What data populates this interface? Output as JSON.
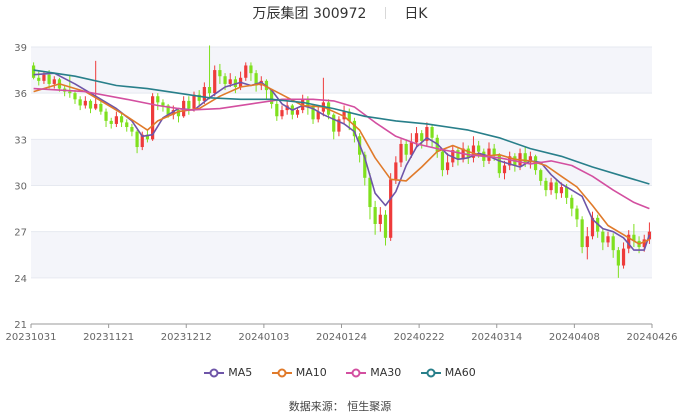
{
  "header": {
    "title": "万辰集团 300972",
    "period": "日K"
  },
  "source_text": "数据来源：  恒生聚源",
  "colors": {
    "up": "#ee3b3b",
    "down": "#7fe01e",
    "grid": "#e6e9f0",
    "band": "#f4f5fa",
    "axis": "#999999"
  },
  "chart_data": {
    "type": "candlestick",
    "ylim": [
      21,
      39
    ],
    "yticks": [
      21,
      24,
      27,
      30,
      33,
      36,
      39
    ],
    "xtick_labels": [
      "20231031",
      "20231121",
      "20231212",
      "20240103",
      "20240124",
      "20240222",
      "20240314",
      "20240408",
      "20240426"
    ],
    "session_count": 120,
    "candles": [
      [
        37.8,
        37.0,
        38.0,
        36.9
      ],
      [
        37.0,
        36.8,
        37.4,
        36.5
      ],
      [
        36.8,
        37.2,
        37.4,
        36.6
      ],
      [
        37.2,
        36.6,
        37.5,
        36.3
      ],
      [
        36.6,
        36.9,
        37.1,
        36.3
      ],
      [
        36.9,
        36.3,
        37.0,
        36.1
      ],
      [
        36.3,
        36.1,
        36.5,
        35.8
      ],
      [
        36.1,
        36.0,
        37.2,
        35.7
      ],
      [
        36.0,
        35.6,
        36.2,
        35.3
      ],
      [
        35.6,
        35.2,
        35.8,
        34.9
      ],
      [
        35.2,
        35.5,
        35.8,
        35.0
      ],
      [
        35.5,
        35.0,
        35.6,
        34.7
      ],
      [
        35.0,
        35.3,
        38.1,
        34.9
      ],
      [
        35.3,
        34.8,
        35.5,
        34.6
      ],
      [
        34.8,
        34.2,
        35.0,
        33.8
      ],
      [
        34.2,
        34.0,
        34.4,
        33.7
      ],
      [
        34.0,
        34.5,
        34.8,
        33.8
      ],
      [
        34.5,
        34.1,
        34.7,
        33.8
      ],
      [
        34.1,
        33.8,
        34.3,
        33.5
      ],
      [
        33.8,
        33.5,
        34.0,
        33.2
      ],
      [
        33.5,
        32.5,
        33.6,
        32.1
      ],
      [
        32.5,
        33.3,
        33.5,
        32.3
      ],
      [
        33.3,
        33.0,
        33.6,
        32.8
      ],
      [
        33.0,
        35.8,
        36.0,
        32.9
      ],
      [
        35.8,
        35.4,
        36.0,
        34.9
      ],
      [
        35.4,
        35.2,
        35.6,
        34.8
      ],
      [
        35.2,
        34.6,
        35.3,
        34.4
      ],
      [
        34.6,
        34.9,
        35.2,
        34.3
      ],
      [
        34.9,
        34.5,
        35.0,
        34.1
      ],
      [
        34.5,
        35.5,
        35.8,
        34.4
      ],
      [
        35.5,
        35.0,
        35.8,
        34.6
      ],
      [
        35.0,
        35.9,
        36.1,
        34.8
      ],
      [
        35.9,
        35.5,
        36.2,
        35.2
      ],
      [
        35.5,
        36.4,
        36.7,
        35.3
      ],
      [
        36.4,
        36.0,
        39.1,
        35.6
      ],
      [
        36.0,
        37.5,
        37.8,
        35.8
      ],
      [
        37.5,
        37.1,
        37.9,
        36.6
      ],
      [
        37.1,
        36.6,
        37.3,
        36.2
      ],
      [
        36.6,
        36.9,
        37.3,
        36.4
      ],
      [
        36.9,
        36.4,
        37.1,
        36.0
      ],
      [
        36.4,
        37.0,
        37.4,
        36.2
      ],
      [
        37.0,
        37.8,
        38.0,
        36.8
      ],
      [
        37.8,
        37.3,
        38.0,
        36.8
      ],
      [
        37.3,
        36.5,
        37.5,
        36.1
      ],
      [
        36.5,
        36.8,
        37.1,
        36.2
      ],
      [
        36.8,
        36.2,
        36.9,
        35.6
      ],
      [
        36.2,
        35.3,
        36.3,
        35.0
      ],
      [
        35.3,
        34.5,
        35.5,
        34.2
      ],
      [
        34.5,
        34.9,
        35.2,
        34.3
      ],
      [
        34.9,
        35.2,
        35.5,
        34.6
      ],
      [
        35.2,
        34.6,
        35.3,
        34.3
      ],
      [
        34.6,
        34.9,
        35.1,
        34.4
      ],
      [
        34.9,
        35.6,
        35.9,
        34.7
      ],
      [
        35.6,
        35.2,
        35.8,
        34.6
      ],
      [
        35.2,
        34.3,
        35.3,
        34.0
      ],
      [
        34.3,
        34.8,
        35.1,
        34.1
      ],
      [
        34.8,
        35.4,
        37.0,
        34.5
      ],
      [
        35.4,
        34.6,
        35.6,
        34.3
      ],
      [
        34.6,
        33.5,
        34.7,
        33.0
      ],
      [
        33.5,
        34.3,
        34.5,
        33.2
      ],
      [
        34.3,
        34.8,
        35.2,
        34.0
      ],
      [
        34.8,
        34.2,
        35.0,
        33.6
      ],
      [
        34.2,
        33.2,
        34.4,
        32.8
      ],
      [
        33.2,
        32.0,
        33.4,
        31.5
      ],
      [
        32.0,
        30.5,
        32.2,
        30.0
      ],
      [
        30.5,
        28.6,
        30.8,
        27.8
      ],
      [
        28.6,
        27.5,
        29.0,
        26.8
      ],
      [
        27.5,
        28.1,
        28.6,
        27.0
      ],
      [
        28.1,
        26.6,
        28.4,
        26.1
      ],
      [
        26.6,
        30.4,
        30.8,
        26.4
      ],
      [
        30.4,
        31.5,
        31.9,
        30.1
      ],
      [
        31.5,
        32.7,
        33.0,
        31.2
      ],
      [
        32.7,
        32.0,
        33.0,
        31.6
      ],
      [
        32.0,
        32.8,
        33.4,
        31.8
      ],
      [
        32.8,
        33.4,
        33.8,
        32.5
      ],
      [
        33.4,
        32.9,
        33.6,
        32.4
      ],
      [
        32.9,
        33.8,
        34.1,
        32.6
      ],
      [
        33.8,
        33.1,
        34.0,
        32.5
      ],
      [
        33.1,
        32.2,
        33.3,
        31.8
      ],
      [
        32.2,
        31.0,
        32.4,
        30.6
      ],
      [
        31.0,
        31.5,
        32.1,
        30.7
      ],
      [
        31.5,
        32.3,
        32.6,
        31.2
      ],
      [
        32.3,
        31.7,
        32.5,
        31.3
      ],
      [
        31.7,
        32.4,
        32.8,
        31.5
      ],
      [
        32.4,
        31.8,
        32.6,
        31.4
      ],
      [
        31.8,
        32.6,
        33.2,
        31.5
      ],
      [
        32.6,
        32.2,
        32.9,
        31.8
      ],
      [
        32.2,
        31.6,
        32.4,
        31.2
      ],
      [
        31.6,
        32.4,
        32.8,
        31.4
      ],
      [
        32.4,
        32.0,
        32.7,
        31.6
      ],
      [
        32.0,
        30.8,
        32.1,
        30.5
      ],
      [
        30.8,
        31.3,
        31.6,
        30.4
      ],
      [
        31.3,
        31.9,
        32.2,
        31.0
      ],
      [
        31.9,
        31.3,
        32.1,
        30.9
      ],
      [
        31.3,
        32.1,
        32.4,
        31.0
      ],
      [
        32.1,
        31.5,
        32.5,
        31.2
      ],
      [
        31.5,
        31.9,
        32.2,
        31.1
      ],
      [
        31.9,
        31.0,
        32.0,
        30.7
      ],
      [
        31.0,
        30.3,
        31.1,
        30.0
      ],
      [
        30.3,
        29.7,
        30.5,
        29.3
      ],
      [
        29.7,
        30.2,
        30.5,
        29.4
      ],
      [
        30.2,
        29.5,
        30.4,
        29.1
      ],
      [
        29.5,
        29.9,
        30.2,
        29.2
      ],
      [
        29.9,
        29.2,
        30.1,
        28.8
      ],
      [
        29.2,
        28.5,
        29.4,
        28.0
      ],
      [
        28.5,
        27.8,
        28.7,
        27.3
      ],
      [
        27.8,
        26.0,
        28.0,
        25.6
      ],
      [
        26.0,
        26.7,
        27.3,
        25.2
      ],
      [
        26.7,
        27.9,
        28.3,
        26.5
      ],
      [
        27.9,
        27.0,
        28.1,
        26.6
      ],
      [
        27.0,
        26.3,
        27.2,
        25.8
      ],
      [
        26.3,
        26.7,
        27.0,
        26.0
      ],
      [
        26.7,
        25.8,
        26.9,
        25.3
      ],
      [
        25.8,
        24.8,
        26.0,
        24.0
      ],
      [
        24.8,
        25.9,
        26.3,
        24.6
      ],
      [
        25.9,
        26.8,
        27.1,
        25.6
      ],
      [
        26.8,
        26.4,
        27.5,
        26.0
      ],
      [
        26.4,
        26.0,
        26.7,
        25.6
      ],
      [
        26.0,
        26.5,
        26.8,
        25.7
      ],
      [
        26.5,
        27.0,
        27.6,
        26.2
      ]
    ],
    "series": [
      {
        "name": "MA5",
        "color": "#6e55a8",
        "values": [
          [
            0,
            37.2
          ],
          [
            4,
            37.3
          ],
          [
            8,
            36.6
          ],
          [
            12,
            35.8
          ],
          [
            16,
            35.0
          ],
          [
            19,
            34.2
          ],
          [
            21,
            33.2
          ],
          [
            23,
            33.3
          ],
          [
            25,
            34.4
          ],
          [
            28,
            35.0
          ],
          [
            31,
            34.9
          ],
          [
            34,
            35.7
          ],
          [
            37,
            36.4
          ],
          [
            40,
            36.7
          ],
          [
            42,
            36.5
          ],
          [
            44,
            36.7
          ],
          [
            46,
            36.2
          ],
          [
            48,
            35.3
          ],
          [
            50,
            34.9
          ],
          [
            52,
            35.2
          ],
          [
            54,
            35.0
          ],
          [
            56,
            34.6
          ],
          [
            58,
            34.3
          ],
          [
            60,
            34.0
          ],
          [
            62,
            33.5
          ],
          [
            64,
            31.8
          ],
          [
            66,
            29.5
          ],
          [
            68,
            28.7
          ],
          [
            70,
            29.6
          ],
          [
            72,
            31.3
          ],
          [
            74,
            32.5
          ],
          [
            76,
            33.1
          ],
          [
            78,
            32.7
          ],
          [
            80,
            32.0
          ],
          [
            82,
            31.7
          ],
          [
            84,
            31.8
          ],
          [
            86,
            32.1
          ],
          [
            88,
            31.9
          ],
          [
            90,
            31.6
          ],
          [
            92,
            31.4
          ],
          [
            94,
            31.2
          ],
          [
            96,
            31.6
          ],
          [
            98,
            31.5
          ],
          [
            100,
            30.7
          ],
          [
            102,
            30.1
          ],
          [
            104,
            29.7
          ],
          [
            106,
            29.3
          ],
          [
            108,
            27.8
          ],
          [
            110,
            27.2
          ],
          [
            112,
            27.0
          ],
          [
            114,
            26.6
          ],
          [
            116,
            25.8
          ],
          [
            118,
            25.8
          ],
          [
            119,
            26.8
          ]
        ]
      },
      {
        "name": "MA10",
        "color": "#e07a2a",
        "values": [
          [
            0,
            36.1
          ],
          [
            5,
            36.6
          ],
          [
            10,
            36.1
          ],
          [
            14,
            35.3
          ],
          [
            18,
            34.5
          ],
          [
            22,
            33.6
          ],
          [
            24,
            34.2
          ],
          [
            28,
            34.8
          ],
          [
            32,
            35.0
          ],
          [
            36,
            35.8
          ],
          [
            40,
            36.4
          ],
          [
            44,
            36.6
          ],
          [
            48,
            35.9
          ],
          [
            52,
            35.2
          ],
          [
            56,
            35.1
          ],
          [
            60,
            34.5
          ],
          [
            63,
            33.6
          ],
          [
            66,
            31.8
          ],
          [
            69,
            30.4
          ],
          [
            72,
            30.3
          ],
          [
            75,
            31.2
          ],
          [
            78,
            32.2
          ],
          [
            81,
            32.6
          ],
          [
            84,
            32.2
          ],
          [
            87,
            31.9
          ],
          [
            90,
            32.0
          ],
          [
            93,
            31.7
          ],
          [
            96,
            31.6
          ],
          [
            99,
            31.3
          ],
          [
            102,
            30.6
          ],
          [
            105,
            29.9
          ],
          [
            108,
            28.7
          ],
          [
            111,
            27.4
          ],
          [
            114,
            26.8
          ],
          [
            117,
            26.2
          ],
          [
            119,
            26.5
          ]
        ]
      },
      {
        "name": "MA30",
        "color": "#d34fa0",
        "values": [
          [
            0,
            36.3
          ],
          [
            10,
            36.1
          ],
          [
            18,
            35.6
          ],
          [
            24,
            35.2
          ],
          [
            30,
            34.9
          ],
          [
            36,
            35.0
          ],
          [
            42,
            35.3
          ],
          [
            48,
            35.6
          ],
          [
            54,
            35.6
          ],
          [
            58,
            35.5
          ],
          [
            62,
            35.1
          ],
          [
            66,
            34.1
          ],
          [
            70,
            33.2
          ],
          [
            74,
            32.7
          ],
          [
            78,
            32.4
          ],
          [
            84,
            32.0
          ],
          [
            90,
            31.8
          ],
          [
            96,
            31.4
          ],
          [
            100,
            31.6
          ],
          [
            104,
            31.3
          ],
          [
            108,
            30.6
          ],
          [
            112,
            29.7
          ],
          [
            116,
            28.9
          ],
          [
            119,
            28.5
          ]
        ]
      },
      {
        "name": "MA60",
        "color": "#287f8a",
        "values": [
          [
            0,
            37.5
          ],
          [
            8,
            37.1
          ],
          [
            16,
            36.5
          ],
          [
            22,
            36.3
          ],
          [
            28,
            36.0
          ],
          [
            34,
            35.7
          ],
          [
            40,
            35.6
          ],
          [
            46,
            35.6
          ],
          [
            52,
            35.4
          ],
          [
            58,
            35.0
          ],
          [
            64,
            34.5
          ],
          [
            70,
            34.2
          ],
          [
            76,
            34.0
          ],
          [
            84,
            33.6
          ],
          [
            90,
            33.1
          ],
          [
            96,
            32.4
          ],
          [
            102,
            31.9
          ],
          [
            108,
            31.2
          ],
          [
            114,
            30.6
          ],
          [
            119,
            30.1
          ]
        ]
      }
    ]
  }
}
